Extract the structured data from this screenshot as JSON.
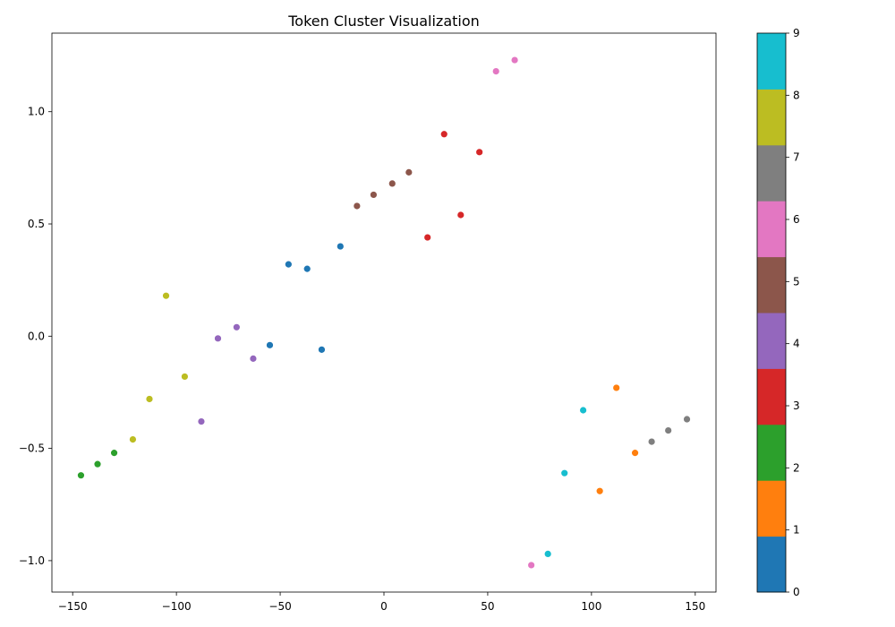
{
  "chart_data": {
    "type": "scatter",
    "title": "Token Cluster Visualization",
    "xlabel": "",
    "ylabel": "",
    "xlim": [
      -160,
      160
    ],
    "ylim": [
      -1.14,
      1.35
    ],
    "xticks": [
      -150,
      -100,
      -50,
      0,
      50,
      100,
      150
    ],
    "xtick_labels": [
      "−150",
      "−100",
      "−50",
      "0",
      "50",
      "100",
      "150"
    ],
    "yticks": [
      -1.0,
      -0.5,
      0.0,
      0.5,
      1.0
    ],
    "ytick_labels": [
      "−1.0",
      "−0.5",
      "0.0",
      "0.5",
      "1.0"
    ],
    "grid": false,
    "colorbar": {
      "min": 0,
      "max": 9,
      "ticks": [
        0,
        1,
        2,
        3,
        4,
        5,
        6,
        7,
        8,
        9
      ],
      "tick_labels": [
        "0",
        "1",
        "2",
        "3",
        "4",
        "5",
        "6",
        "7",
        "8",
        "9"
      ],
      "colors": [
        "#1f77b4",
        "#ff7f0e",
        "#2ca02c",
        "#d62728",
        "#9467bd",
        "#8c564b",
        "#e377c2",
        "#7f7f7f",
        "#bcbd22",
        "#17becf"
      ]
    },
    "points": [
      {
        "x": -46,
        "y": 0.32,
        "cluster": 0
      },
      {
        "x": -37,
        "y": 0.3,
        "cluster": 0
      },
      {
        "x": -21,
        "y": 0.4,
        "cluster": 0
      },
      {
        "x": -55,
        "y": -0.04,
        "cluster": 0
      },
      {
        "x": -30,
        "y": -0.06,
        "cluster": 0
      },
      {
        "x": 112,
        "y": -0.23,
        "cluster": 1
      },
      {
        "x": 121,
        "y": -0.52,
        "cluster": 1
      },
      {
        "x": 104,
        "y": -0.69,
        "cluster": 1
      },
      {
        "x": -146,
        "y": -0.62,
        "cluster": 2
      },
      {
        "x": -138,
        "y": -0.57,
        "cluster": 2
      },
      {
        "x": -130,
        "y": -0.52,
        "cluster": 2
      },
      {
        "x": 29,
        "y": 0.9,
        "cluster": 3
      },
      {
        "x": 46,
        "y": 0.82,
        "cluster": 3
      },
      {
        "x": 37,
        "y": 0.54,
        "cluster": 3
      },
      {
        "x": 21,
        "y": 0.44,
        "cluster": 3
      },
      {
        "x": -71,
        "y": 0.04,
        "cluster": 4
      },
      {
        "x": -80,
        "y": -0.01,
        "cluster": 4
      },
      {
        "x": -63,
        "y": -0.1,
        "cluster": 4
      },
      {
        "x": -88,
        "y": -0.38,
        "cluster": 4
      },
      {
        "x": -13,
        "y": 0.58,
        "cluster": 5
      },
      {
        "x": -5,
        "y": 0.63,
        "cluster": 5
      },
      {
        "x": 4,
        "y": 0.68,
        "cluster": 5
      },
      {
        "x": 12,
        "y": 0.73,
        "cluster": 5
      },
      {
        "x": 54,
        "y": 1.18,
        "cluster": 6
      },
      {
        "x": 63,
        "y": 1.23,
        "cluster": 6
      },
      {
        "x": 71,
        "y": -1.02,
        "cluster": 6
      },
      {
        "x": 129,
        "y": -0.47,
        "cluster": 7
      },
      {
        "x": 137,
        "y": -0.42,
        "cluster": 7
      },
      {
        "x": 146,
        "y": -0.37,
        "cluster": 7
      },
      {
        "x": -105,
        "y": 0.18,
        "cluster": 8
      },
      {
        "x": -96,
        "y": -0.18,
        "cluster": 8
      },
      {
        "x": -113,
        "y": -0.28,
        "cluster": 8
      },
      {
        "x": -121,
        "y": -0.46,
        "cluster": 8
      },
      {
        "x": 96,
        "y": -0.33,
        "cluster": 9
      },
      {
        "x": 87,
        "y": -0.61,
        "cluster": 9
      },
      {
        "x": 79,
        "y": -0.97,
        "cluster": 9
      }
    ]
  }
}
